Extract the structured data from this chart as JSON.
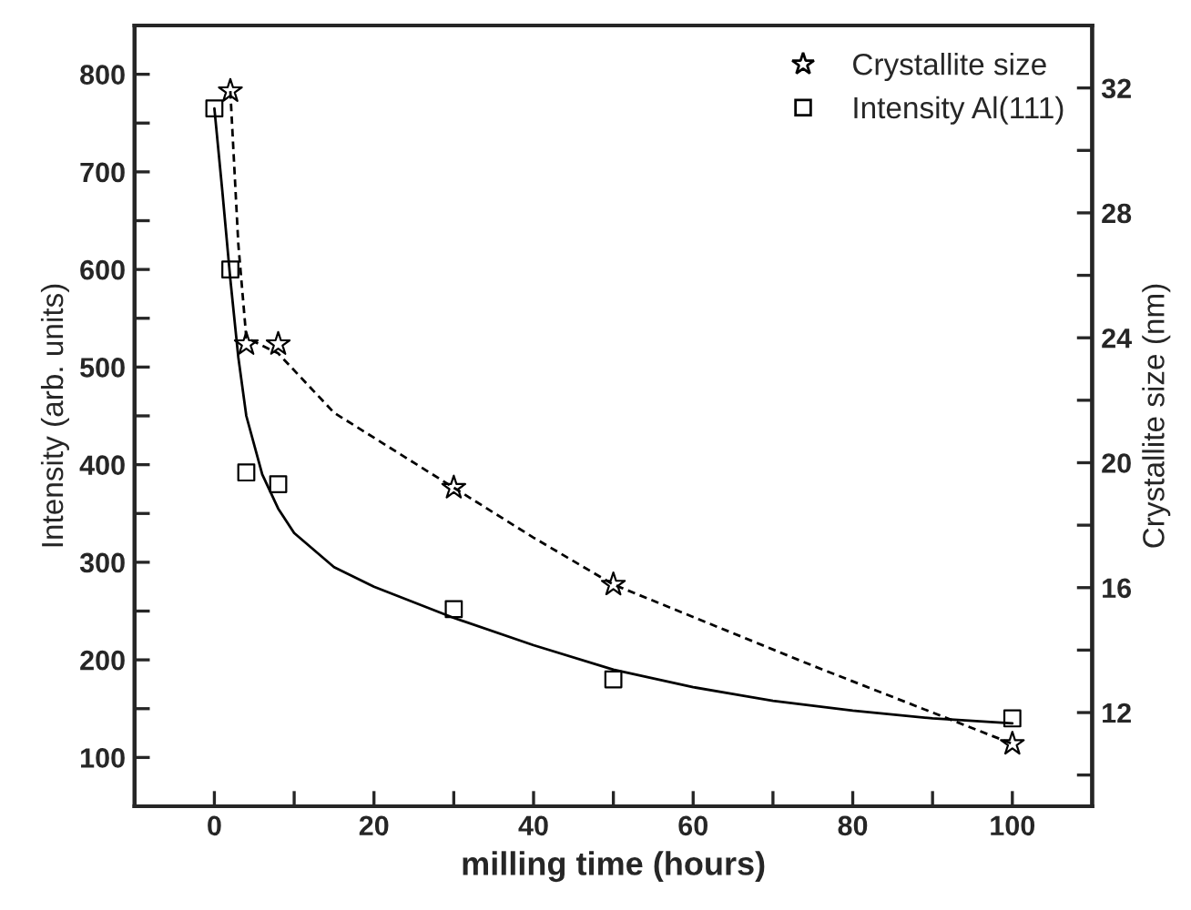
{
  "chart_data": {
    "type": "scatter",
    "xlabel": "milling time (hours)",
    "ylabel": "Intensity (arb. units)",
    "y2label": "Crystallite size (nm)",
    "xlim": [
      -10,
      110
    ],
    "xticks": [
      0,
      {
        "value": 10,
        "label": null
      },
      20,
      {
        "value": 30,
        "label": null
      },
      40,
      {
        "value": 50,
        "label": null
      },
      60,
      {
        "value": 70,
        "label": null
      },
      80,
      {
        "value": 90,
        "label": null
      },
      100
    ],
    "ylim": [
      50,
      850
    ],
    "yticks": [
      100,
      {
        "value": 150,
        "label": null
      },
      200,
      {
        "value": 250,
        "label": null
      },
      300,
      {
        "value": 350,
        "label": null
      },
      400,
      {
        "value": 450,
        "label": null
      },
      500,
      {
        "value": 550,
        "label": null
      },
      600,
      {
        "value": 650,
        "label": null
      },
      700,
      {
        "value": 750,
        "label": null
      },
      800
    ],
    "y2lim": [
      9,
      34
    ],
    "y2ticks": [
      {
        "value": 10,
        "label": null
      },
      12,
      {
        "value": 14,
        "label": null
      },
      16,
      {
        "value": 18,
        "label": null
      },
      20,
      {
        "value": 22,
        "label": null
      },
      24,
      {
        "value": 26,
        "label": null
      },
      28,
      {
        "value": 30,
        "label": null
      },
      32
    ],
    "legend": "top right",
    "grid": false,
    "series": [
      {
        "name": "Crystallite size",
        "axis": "y2",
        "marker": "star",
        "color": "#000000",
        "x": [
          2,
          4,
          8,
          30,
          50,
          100
        ],
        "values": [
          31.9,
          23.8,
          23.8,
          19.2,
          16.1,
          11.0
        ]
      },
      {
        "name": "Intensity Al(111)",
        "axis": "y",
        "marker": "square",
        "color": "#000000",
        "x": [
          0,
          2,
          4,
          8,
          30,
          50,
          100
        ],
        "values": [
          765,
          600,
          392,
          380,
          252,
          180,
          140
        ]
      },
      {
        "type": "line",
        "axis": "y2",
        "line_style": "dashed",
        "marker": "none",
        "color": "#000000",
        "x": [
          2,
          3,
          4,
          8,
          15,
          30,
          40,
          50,
          75,
          100
        ],
        "values": [
          31.9,
          27,
          24,
          23.5,
          21.6,
          19.2,
          17.6,
          16.1,
          13.5,
          11.0
        ]
      },
      {
        "type": "line",
        "axis": "y",
        "line_style": "solid",
        "marker": "none",
        "color": "#000000",
        "x": [
          0,
          1,
          2,
          3,
          4,
          6,
          8,
          10,
          15,
          20,
          30,
          40,
          50,
          60,
          70,
          80,
          90,
          100
        ],
        "values": [
          765,
          680,
          590,
          510,
          450,
          390,
          355,
          330,
          295,
          275,
          243,
          215,
          190,
          172,
          158,
          148,
          140,
          135
        ]
      }
    ]
  }
}
